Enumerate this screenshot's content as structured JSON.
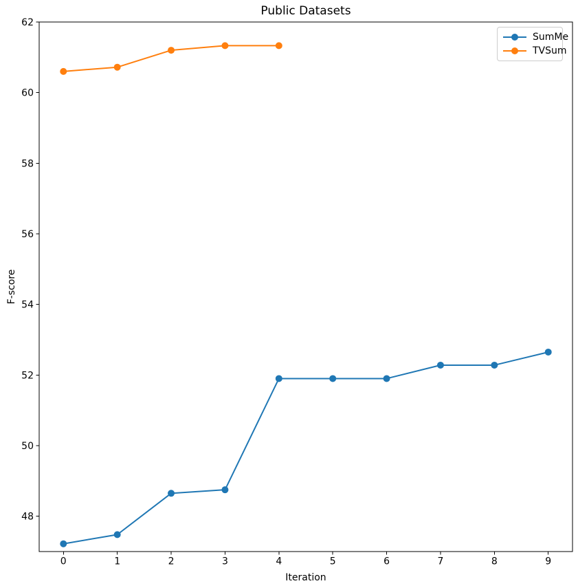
{
  "figure": {
    "background": "#ffffff",
    "axis_color": "#000000",
    "text_color": "#000000"
  },
  "chart_data": {
    "type": "line",
    "title": "Public Datasets",
    "xlabel": "Iteration",
    "ylabel": "F-score",
    "xlim": [
      -0.45,
      9.45
    ],
    "ylim": [
      47,
      62
    ],
    "x_ticks": [
      0,
      1,
      2,
      3,
      4,
      5,
      6,
      7,
      8,
      9
    ],
    "y_ticks": [
      48,
      50,
      52,
      54,
      56,
      58,
      60,
      62
    ],
    "grid": false,
    "legend_position": "upper right",
    "series": [
      {
        "name": "SumMe",
        "color": "#1f77b4",
        "marker": "circle",
        "x": [
          0,
          1,
          2,
          3,
          4,
          5,
          6,
          7,
          8,
          9
        ],
        "y": [
          47.22,
          47.48,
          48.65,
          48.75,
          51.9,
          51.9,
          51.9,
          52.28,
          52.28,
          52.65
        ]
      },
      {
        "name": "TVSum",
        "color": "#ff7f0e",
        "marker": "circle",
        "x": [
          0,
          1,
          2,
          3,
          4
        ],
        "y": [
          60.6,
          60.72,
          61.2,
          61.33,
          61.33
        ]
      }
    ]
  }
}
